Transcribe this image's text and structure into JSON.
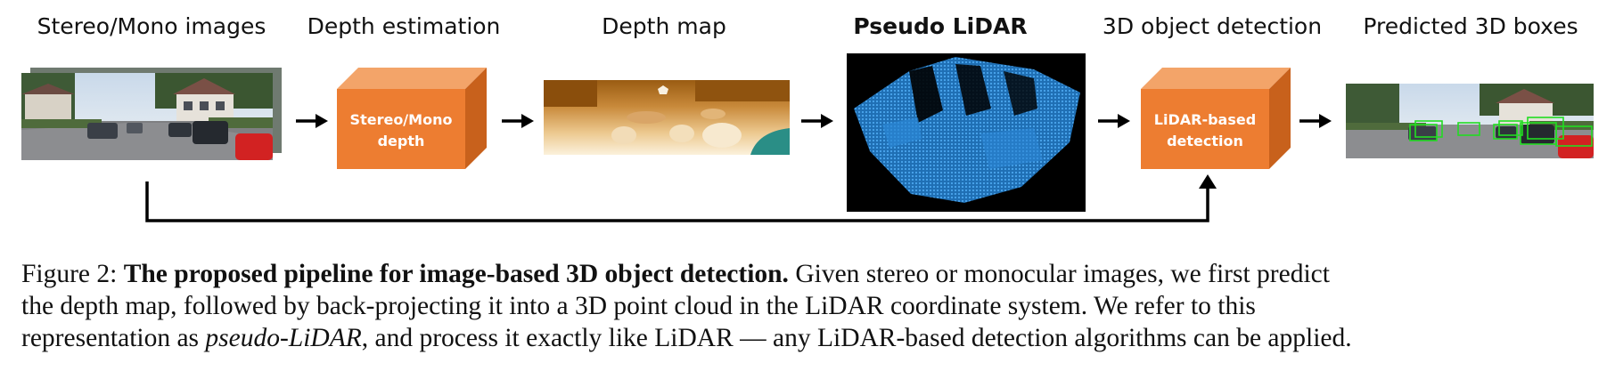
{
  "stages": [
    {
      "title": "Stereo/Mono images"
    },
    {
      "title": "Depth estimation",
      "cube_line1": "Stereo/Mono",
      "cube_line2": "depth"
    },
    {
      "title": "Depth map"
    },
    {
      "title": "Pseudo LiDAR"
    },
    {
      "title": "3D object detection",
      "cube_line1": "LiDAR-based",
      "cube_line2": "detection"
    },
    {
      "title": "Predicted 3D boxes"
    }
  ],
  "colors": {
    "cube_front": "#ED7D31",
    "cube_top": "#F3A469",
    "cube_side": "#C8611C",
    "point_cloud": "#2E8BD6",
    "detection_box": "#22DD22",
    "arrow": "#000000"
  },
  "caption": {
    "figure_label": "Figure 2:",
    "bold_title": "The proposed pipeline for image-based 3D object detection.",
    "line1_rest": "Given stereo or monocular images, we first predict",
    "line2": "the depth map, followed by back-projecting it into a 3D point cloud in the LiDAR coordinate system.  We refer to this",
    "line3_pre": "representation as",
    "line3_italic": "pseudo-LiDAR",
    "line3_post": ", and process it exactly like LiDAR — any LiDAR-based detection algorithms can be applied."
  }
}
